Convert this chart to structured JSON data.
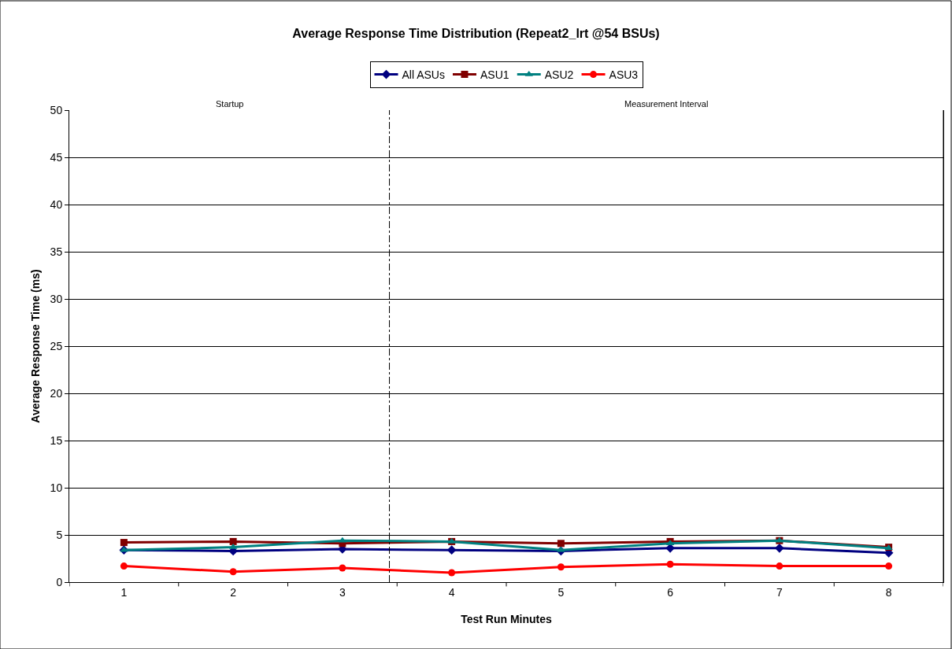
{
  "chart_data": {
    "type": "line",
    "title": "Average Response Time Distribution (Repeat2_lrt @54 BSUs)",
    "xlabel": "Test Run Minutes",
    "ylabel": "Average Response Time (ms)",
    "x": [
      1,
      2,
      3,
      4,
      5,
      6,
      7,
      8
    ],
    "xlim": [
      0.5,
      8.5
    ],
    "xticks": [
      {
        "value": 0.5,
        "label": null
      },
      1,
      {
        "value": 1.5,
        "label": null
      },
      2,
      {
        "value": 2.5,
        "label": null
      },
      3,
      {
        "value": 3.5,
        "label": null
      },
      4,
      {
        "value": 4.5,
        "label": null
      },
      5,
      {
        "value": 5.5,
        "label": null
      },
      6,
      {
        "value": 6.5,
        "label": null
      },
      7,
      {
        "value": 7.5,
        "label": null
      },
      8,
      {
        "value": 8.5,
        "label": null
      }
    ],
    "ylim": [
      0,
      50
    ],
    "yticks": [
      0,
      5,
      10,
      15,
      20,
      25,
      30,
      35,
      40,
      45,
      50
    ],
    "grid": "y",
    "legend": "top",
    "series": [
      {
        "name": "All ASUs",
        "color": "#000080",
        "marker": "diamond",
        "values": [
          3.4,
          3.3,
          3.5,
          3.4,
          3.3,
          3.6,
          3.6,
          3.1
        ]
      },
      {
        "name": "ASU1",
        "color": "#800000",
        "marker": "square",
        "values": [
          4.2,
          4.3,
          4.1,
          4.3,
          4.1,
          4.3,
          4.4,
          3.7
        ]
      },
      {
        "name": "ASU2",
        "color": "#008080",
        "marker": "triangle",
        "values": [
          3.4,
          3.7,
          4.4,
          4.3,
          3.4,
          4.1,
          4.4,
          3.6
        ]
      },
      {
        "name": "ASU3",
        "color": "#ff0000",
        "marker": "circle",
        "values": [
          1.7,
          1.1,
          1.5,
          1.0,
          1.6,
          1.9,
          1.7,
          1.7
        ]
      }
    ],
    "ref_lines": [
      {
        "axis": "x",
        "value": 3.43,
        "color": "#000000",
        "line_style": "dashed"
      }
    ],
    "annotations": [
      "Startup",
      "Measurement Interval"
    ]
  }
}
